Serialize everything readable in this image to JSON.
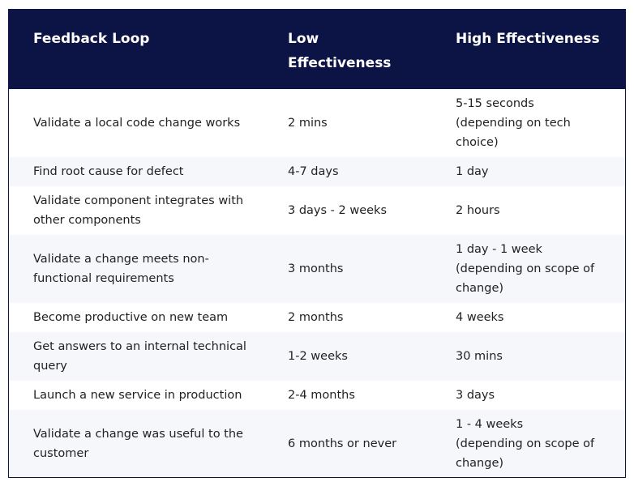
{
  "table": {
    "headers": {
      "feedback_loop": "Feedback Loop",
      "low_line1": "Low",
      "low_line2": "Effectiveness",
      "high": "High Effectiveness"
    },
    "rows": [
      {
        "loop": [
          "Validate a local code change works"
        ],
        "low": [
          "2 mins"
        ],
        "high": [
          "5-15 seconds",
          "(depending on tech",
          "choice)"
        ]
      },
      {
        "loop": [
          "Find root cause for defect"
        ],
        "low": [
          "4-7 days"
        ],
        "high": [
          "1 day"
        ]
      },
      {
        "loop": [
          "Validate component integrates with",
          "other components"
        ],
        "low": [
          "3 days - 2 weeks"
        ],
        "high": [
          "2 hours"
        ]
      },
      {
        "loop": [
          "Validate a change meets non-",
          "functional requirements"
        ],
        "low": [
          "3 months"
        ],
        "high": [
          "1 day - 1 week",
          "(depending on scope of",
          "change)"
        ]
      },
      {
        "loop": [
          "Become productive on new team"
        ],
        "low": [
          "2 months"
        ],
        "high": [
          "4 weeks"
        ]
      },
      {
        "loop": [
          "Get answers to an internal technical",
          "query"
        ],
        "low": [
          "1-2 weeks"
        ],
        "high": [
          "30 mins"
        ]
      },
      {
        "loop": [
          "Launch a new service in production"
        ],
        "low": [
          "2-4 months"
        ],
        "high": [
          "3 days"
        ]
      },
      {
        "loop": [
          "Validate a change was useful to the",
          "customer"
        ],
        "low": [
          "6 months or never"
        ],
        "high": [
          "1 - 4 weeks",
          "(depending on scope of",
          "change)"
        ]
      }
    ]
  },
  "colors": {
    "header_bg": "#0c1345",
    "header_text": "#ffffff",
    "row_alt_bg": "#f5f7fb",
    "body_text": "#222222"
  }
}
